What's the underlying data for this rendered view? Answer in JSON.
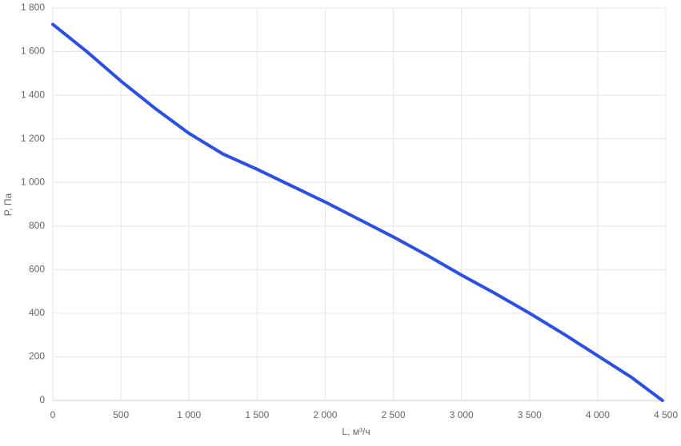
{
  "chart_data": {
    "type": "line",
    "x_label": "L, м³/ч",
    "y_label": "P, Па",
    "x": [
      0,
      250,
      500,
      750,
      1000,
      1250,
      1500,
      1750,
      2000,
      2250,
      2500,
      2750,
      3000,
      3250,
      3500,
      3750,
      4000,
      4250,
      4475
    ],
    "series": [
      {
        "name": "P",
        "color": "#2b50e3",
        "values": [
          1725,
          1600,
          1465,
          1340,
          1225,
          1130,
          1060,
          985,
          910,
          830,
          750,
          665,
          575,
          490,
          400,
          305,
          205,
          105,
          0
        ]
      }
    ],
    "xlim": [
      0,
      4500
    ],
    "xticks": [
      0,
      500,
      {
        "value": 1000,
        "label": "1 000"
      },
      {
        "value": 1500,
        "label": "1 500"
      },
      {
        "value": 2000,
        "label": "2 000"
      },
      {
        "value": 2500,
        "label": "2 500"
      },
      {
        "value": 3000,
        "label": "3 000"
      },
      {
        "value": 3500,
        "label": "3 500"
      },
      {
        "value": 4000,
        "label": "4 000"
      },
      {
        "value": 4500,
        "label": "4 500"
      }
    ],
    "ylim": [
      0,
      1800
    ],
    "yticks": [
      0,
      200,
      400,
      600,
      800,
      {
        "value": 1000,
        "label": "1 000"
      },
      {
        "value": 1200,
        "label": "1 200"
      },
      {
        "value": 1400,
        "label": "1 400"
      },
      {
        "value": 1600,
        "label": "1 600"
      },
      {
        "value": 1800,
        "label": "1 800"
      }
    ],
    "grid": true
  }
}
